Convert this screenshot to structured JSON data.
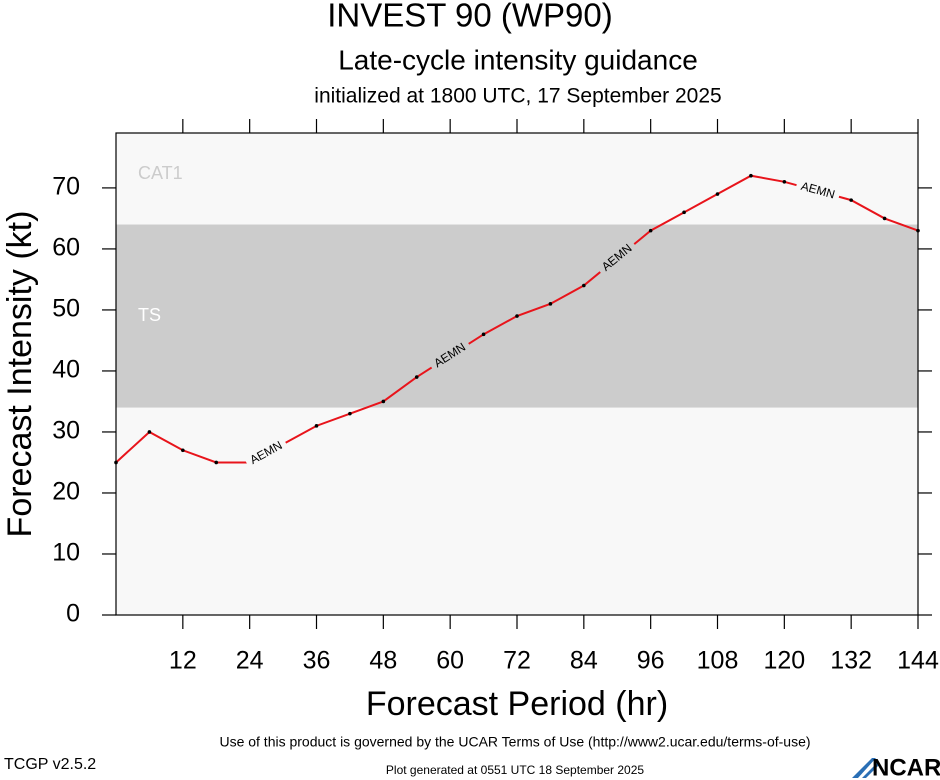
{
  "chart_data": {
    "type": "line",
    "title": "INVEST 90 (WP90)",
    "subtitle": "Late-cycle intensity guidance",
    "init_text": "initialized at 1800 UTC, 17 September 2025",
    "x_label": "Forecast Period (hr)",
    "y_label": "Forecast Intensity (kt)",
    "x": [
      0,
      6,
      12,
      18,
      24,
      30,
      36,
      42,
      48,
      54,
      60,
      66,
      72,
      78,
      84,
      90,
      96,
      102,
      108,
      114,
      120,
      126,
      132,
      138,
      144
    ],
    "series": [
      {
        "name": "AEMN",
        "color": "#e8141b",
        "values": [
          25,
          30,
          27,
          25,
          25,
          28,
          31,
          33,
          35,
          39,
          42.5,
          46,
          49,
          51,
          54,
          58.5,
          63,
          66,
          69,
          72,
          71,
          69.5,
          68,
          65,
          63
        ],
        "label_at": [
          27,
          60,
          90,
          126
        ]
      }
    ],
    "bands": [
      {
        "name": "TS",
        "from": 34,
        "to": 64,
        "color": "#cccccc"
      },
      {
        "name": "CAT1",
        "from": 64,
        "color": "#f8f8f8"
      }
    ],
    "background": "#f8f8f8",
    "xlim": [
      0,
      144
    ],
    "ylim": [
      0,
      79
    ],
    "xticks": [
      12,
      24,
      36,
      48,
      60,
      72,
      84,
      96,
      108,
      120,
      132,
      144
    ],
    "yticks": [
      0,
      10,
      20,
      30,
      40,
      50,
      60,
      70
    ],
    "footer": {
      "terms": "Use of this product is governed by the UCAR Terms of Use (http://www2.ucar.edu/terms-of-use)",
      "version": "TCGP v2.5.2",
      "generated": "Plot generated at 0551 UTC   18 September 2025",
      "logo": "NCAR"
    }
  }
}
